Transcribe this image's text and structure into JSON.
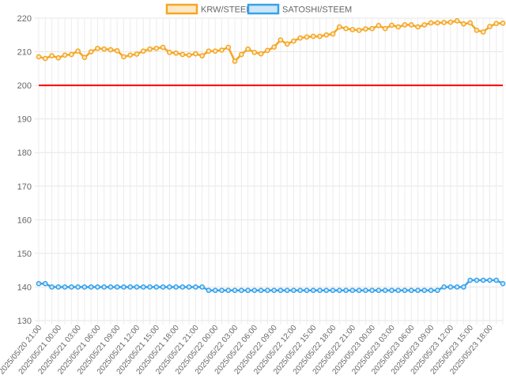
{
  "chart_data": {
    "type": "line",
    "x_tick_labels": [
      "2025/05/20 21:00",
      "2025/05/21 00:00",
      "2025/05/21 03:00",
      "2025/05/21 06:00",
      "2025/05/21 09:00",
      "2025/05/21 12:00",
      "2025/05/21 15:00",
      "2025/05/21 18:00",
      "2025/05/21 21:00",
      "2025/05/22 00:00",
      "2025/05/22 03:00",
      "2025/05/22 06:00",
      "2025/05/22 09:00",
      "2025/05/22 12:00",
      "2025/05/22 15:00",
      "2025/05/22 18:00",
      "2025/05/22 21:00",
      "2025/05/23 00:00",
      "2025/05/23 03:00",
      "2025/05/23 06:00",
      "2025/05/23 09:00",
      "2025/05/23 12:00",
      "2025/05/23 15:00",
      "2025/05/23 18:00"
    ],
    "y_ticks": [
      130,
      140,
      150,
      160,
      170,
      180,
      190,
      200,
      210,
      220
    ],
    "ylim": [
      130,
      220
    ],
    "grid": true,
    "legend_position": "top",
    "reference_line": {
      "y": 200,
      "color": "#ff0000"
    },
    "series": [
      {
        "name": "KRW/STEEM",
        "color": "#f5a623",
        "fill": "#fce8c4",
        "values": [
          208.5,
          208,
          208.8,
          208.2,
          209,
          209.2,
          210.2,
          208.3,
          210,
          211,
          210.8,
          210.6,
          210.3,
          208.5,
          209,
          209.3,
          210.2,
          210.8,
          211,
          211.3,
          209.8,
          209.6,
          209.2,
          209,
          209.4,
          208.8,
          210.2,
          210.2,
          210.5,
          211.3,
          207.2,
          209.2,
          210.8,
          209.8,
          209.4,
          210.4,
          211.4,
          213.5,
          212.3,
          213.2,
          214.1,
          214.4,
          214.6,
          214.6,
          215,
          215.3,
          217.4,
          216.9,
          216.6,
          216.4,
          216.8,
          216.9,
          217.8,
          216.9,
          217.9,
          217.4,
          218,
          218,
          217.4,
          218,
          218.6,
          218.6,
          218.7,
          218.8,
          219.2,
          218.3,
          218.6,
          216.4,
          215.9,
          217.5,
          218.4,
          218.5
        ]
      },
      {
        "name": "SATOSHI/STEEM",
        "color": "#36a2eb",
        "fill": "#cfe6f7",
        "values": [
          141,
          141,
          140,
          140,
          140,
          140,
          140,
          140,
          140,
          140,
          140,
          140,
          140,
          140,
          140,
          140,
          140,
          140,
          140,
          140,
          140,
          140,
          140,
          140,
          140,
          140,
          139,
          139,
          139,
          139,
          139,
          139,
          139,
          139,
          139,
          139,
          139,
          139,
          139,
          139,
          139,
          139,
          139,
          139,
          139,
          139,
          139,
          139,
          139,
          139,
          139,
          139,
          139,
          139,
          139,
          139,
          139,
          139,
          139,
          139,
          139,
          139,
          140,
          140,
          140,
          140,
          142,
          142,
          142,
          142,
          142,
          141
        ]
      }
    ]
  }
}
